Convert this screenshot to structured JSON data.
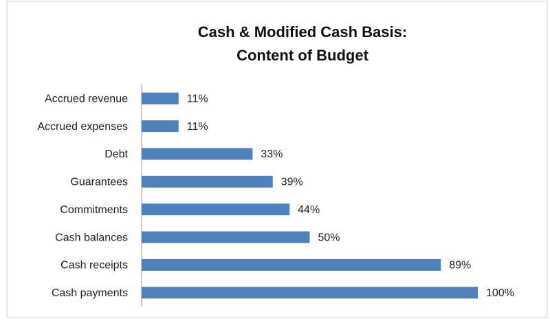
{
  "chart_data": {
    "type": "bar",
    "orientation": "horizontal",
    "title": [
      "Cash & Modified Cash Basis:",
      "Content of Budget"
    ],
    "categories": [
      "Accrued revenue",
      "Accrued expenses",
      "Debt",
      "Guarantees",
      "Commitments",
      "Cash balances",
      "Cash receipts",
      "Cash payments"
    ],
    "values": [
      11,
      11,
      33,
      39,
      44,
      50,
      89,
      100
    ],
    "value_labels": [
      "11%",
      "11%",
      "33%",
      "39%",
      "44%",
      "50%",
      "89%",
      "100%"
    ],
    "color": "#4f81bd",
    "xlim": [
      0,
      100
    ]
  }
}
